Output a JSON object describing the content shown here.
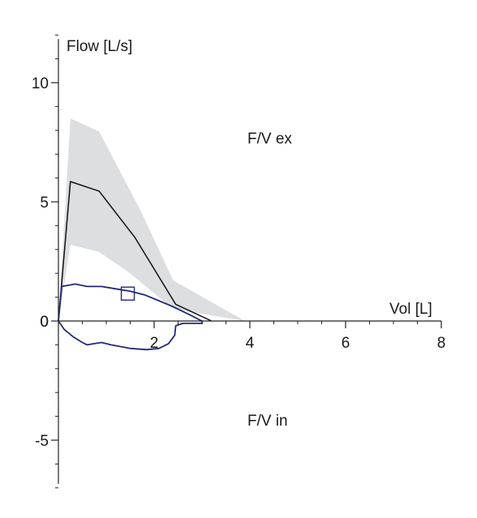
{
  "chart_data": {
    "type": "line",
    "ylabel": "Flow [L/s]",
    "xlabel": "Vol [L]",
    "xlim": [
      0,
      8
    ],
    "ylim": [
      -7,
      12
    ],
    "x_ticks": [
      2,
      4,
      6,
      8
    ],
    "y_ticks": [
      -5,
      0,
      5,
      10
    ],
    "annotations": [
      "F/V ex",
      "F/V in"
    ],
    "colors": {
      "predicted_band": "#dddee0",
      "predicted_line": "#111111",
      "measured_loop": "#1f2a78",
      "axis": "#222222"
    },
    "series": [
      {
        "kind": "band",
        "upper": [
          [
            0,
            0
          ],
          [
            0.25,
            8.5
          ],
          [
            0.85,
            7.95
          ],
          [
            1.7,
            4.7
          ],
          [
            2.4,
            1.7
          ],
          [
            3.9,
            0
          ]
        ],
        "lower": [
          [
            0.25,
            3.2
          ],
          [
            0.85,
            2.9
          ],
          [
            1.5,
            2.0
          ],
          [
            2.4,
            0.5
          ],
          [
            3.9,
            0
          ]
        ]
      },
      {
        "kind": "line",
        "points": [
          [
            0,
            0
          ],
          [
            0.25,
            5.85
          ],
          [
            0.85,
            5.45
          ],
          [
            1.6,
            3.5
          ],
          [
            2.45,
            0.7
          ],
          [
            3.2,
            0
          ]
        ]
      },
      {
        "kind": "loop",
        "points": [
          [
            0,
            0
          ],
          [
            0.07,
            1.45
          ],
          [
            0.35,
            1.55
          ],
          [
            0.6,
            1.45
          ],
          [
            0.9,
            1.45
          ],
          [
            1.2,
            1.35
          ],
          [
            1.5,
            1.25
          ],
          [
            1.8,
            1.1
          ],
          [
            2.1,
            0.85
          ],
          [
            2.4,
            0.6
          ],
          [
            2.75,
            0.25
          ],
          [
            3.0,
            0
          ],
          [
            3.0,
            -0.1
          ],
          [
            2.6,
            -0.1
          ],
          [
            2.45,
            -0.2
          ],
          [
            2.43,
            -0.6
          ],
          [
            2.3,
            -0.95
          ],
          [
            2.1,
            -1.15
          ],
          [
            1.85,
            -1.2
          ],
          [
            1.5,
            -1.15
          ],
          [
            1.1,
            -1.0
          ],
          [
            0.9,
            -0.9
          ],
          [
            0.75,
            -0.95
          ],
          [
            0.6,
            -1.0
          ],
          [
            0.5,
            -0.9
          ],
          [
            0.3,
            -0.65
          ],
          [
            0.12,
            -0.35
          ],
          [
            0,
            0
          ]
        ]
      }
    ],
    "marker": {
      "shape": "square",
      "x": 1.45,
      "y": 1.15
    }
  }
}
